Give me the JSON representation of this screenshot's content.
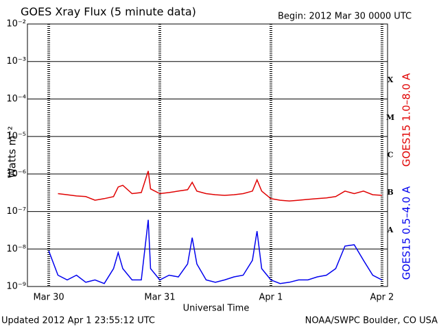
{
  "chart_data": {
    "type": "line",
    "title": "GOES Xray Flux (5 minute data)",
    "subtitle": "Begin:  2012 Mar 30 0000 UTC",
    "x_label": "Universal Time",
    "y_label": "Watts m⁻²",
    "footer_left": "Updated 2012 Apr  1 23:55:12 UTC",
    "footer_right": "NOAA/SWPC Boulder, CO USA",
    "class_labels": [
      "X",
      "M",
      "C",
      "B",
      "A"
    ],
    "log_y": true,
    "grid": true,
    "xlim": [
      -4.6,
      73.2
    ],
    "xticks": [
      {
        "value": 0,
        "label": "Mar 30"
      },
      {
        "value": 24,
        "label": "Mar 31"
      },
      {
        "value": 48,
        "label": "Apr 1"
      },
      {
        "value": 72,
        "label": "Apr 2"
      }
    ],
    "ylim": [
      1e-09,
      0.01
    ],
    "yticks": [
      {
        "value": 1e-09,
        "label": "10⁻⁹"
      },
      {
        "value": 1e-08,
        "label": "10⁻⁸"
      },
      {
        "value": 1e-07,
        "label": "10⁻⁷"
      },
      {
        "value": 1e-06,
        "label": "10⁻⁶"
      },
      {
        "value": 1e-05,
        "label": "10⁻⁵"
      },
      {
        "value": 0.0001,
        "label": "10⁻⁴"
      },
      {
        "value": 0.001,
        "label": "10⁻³"
      },
      {
        "value": 0.01,
        "label": "10⁻²"
      }
    ],
    "x": [
      0,
      2,
      4,
      6,
      8,
      10,
      12,
      14,
      15,
      16,
      18,
      20,
      21.5,
      22,
      24,
      26,
      28,
      30,
      31,
      32,
      34,
      36,
      38,
      40,
      42,
      44,
      45,
      46,
      48,
      50,
      52,
      54,
      56,
      58,
      60,
      62,
      64,
      66,
      68,
      70,
      72
    ],
    "series": [
      {
        "name": "GOES15 1.0–8.0 A",
        "color": "#e00000",
        "values": [
          null,
          3e-07,
          2.8e-07,
          2.6e-07,
          2.5e-07,
          2e-07,
          2.2e-07,
          2.5e-07,
          4.5e-07,
          5e-07,
          3e-07,
          3.2e-07,
          1.2e-06,
          4e-07,
          3e-07,
          3.2e-07,
          3.5e-07,
          3.8e-07,
          6e-07,
          3.5e-07,
          3e-07,
          2.8e-07,
          2.7e-07,
          2.8e-07,
          3e-07,
          3.5e-07,
          7e-07,
          3.5e-07,
          2.2e-07,
          2e-07,
          1.9e-07,
          2e-07,
          2.1e-07,
          2.2e-07,
          2.3e-07,
          2.5e-07,
          3.5e-07,
          3e-07,
          3.5e-07,
          2.8e-07,
          2.7e-07
        ]
      },
      {
        "name": "GOES15 0.5–4.0 A",
        "color": "#0000ee",
        "values": [
          9e-09,
          2e-09,
          1.5e-09,
          2e-09,
          1.3e-09,
          1.5e-09,
          1.2e-09,
          3e-09,
          8e-09,
          3e-09,
          1.5e-09,
          1.5e-09,
          6e-08,
          3e-09,
          1.5e-09,
          2e-09,
          1.8e-09,
          4e-09,
          2e-08,
          4e-09,
          1.5e-09,
          1.3e-09,
          1.5e-09,
          1.8e-09,
          2e-09,
          5e-09,
          3e-08,
          3e-09,
          1.5e-09,
          1.2e-09,
          1.3e-09,
          1.5e-09,
          1.5e-09,
          1.8e-09,
          2e-09,
          3e-09,
          1.2e-08,
          1.3e-08,
          5e-09,
          2e-09,
          1.5e-09
        ]
      }
    ]
  }
}
